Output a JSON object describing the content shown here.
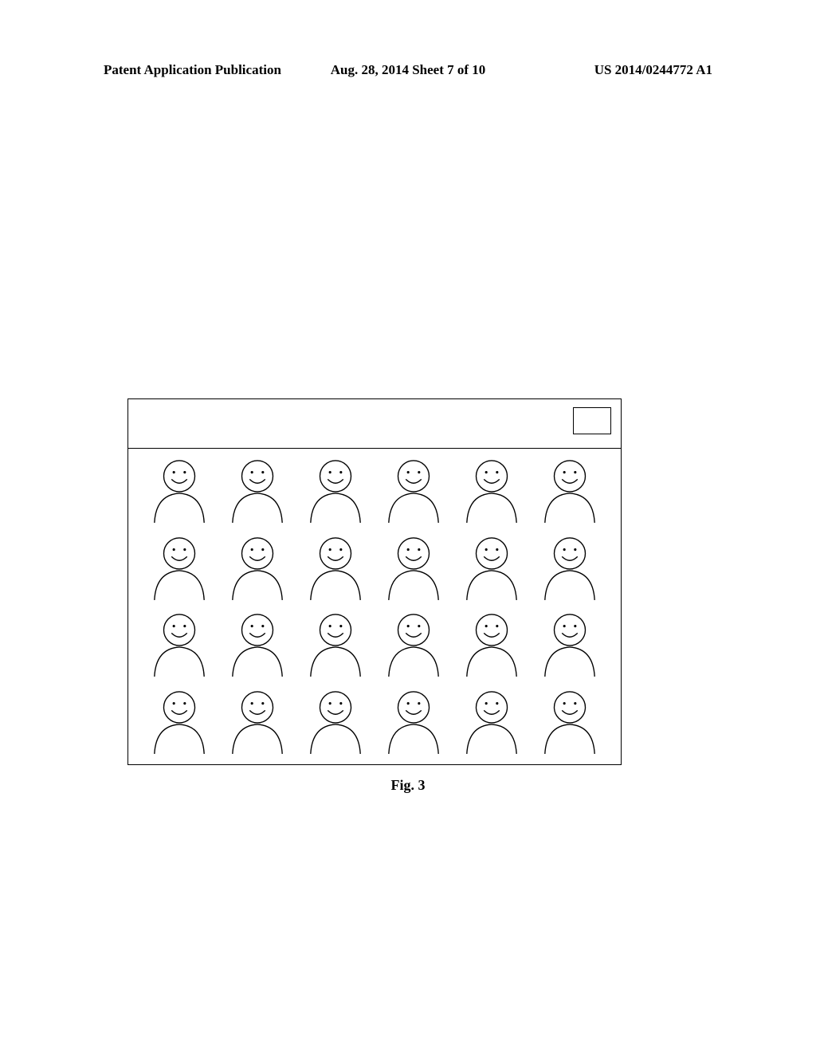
{
  "header": {
    "left": "Patent Application Publication",
    "center": "Aug. 28, 2014  Sheet 7 of 10",
    "right": "US 2014/0244772 A1"
  },
  "figure": {
    "caption": "Fig. 3",
    "grid": {
      "rows": 4,
      "cols": 6
    },
    "icon": {
      "stroke": "#000000",
      "stroke_width": 1.4,
      "fill": "none"
    },
    "border_color": "#000000",
    "background": "#ffffff"
  }
}
